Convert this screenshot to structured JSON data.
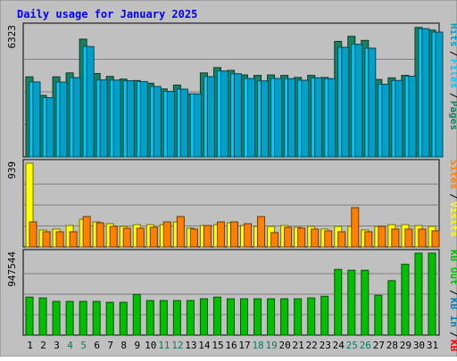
{
  "chart_data": {
    "type": "bar",
    "title": "Daily usage for January 2025",
    "categories": [
      "1",
      "2",
      "3",
      "4",
      "5",
      "6",
      "7",
      "8",
      "9",
      "10",
      "11",
      "12",
      "13",
      "14",
      "15",
      "16",
      "17",
      "18",
      "19",
      "20",
      "21",
      "22",
      "23",
      "24",
      "25",
      "26",
      "27",
      "28",
      "29",
      "30",
      "31"
    ],
    "weekend_days": [
      "4",
      "5",
      "11",
      "12",
      "18",
      "19",
      "25",
      "26"
    ],
    "panels": [
      {
        "id": "hits-files-pages",
        "ymax_label": "6323",
        "ylim": [
          0,
          6323
        ],
        "legend": [
          "Pages",
          "Files",
          "Hits"
        ],
        "legend_separator": "/",
        "series": [
          {
            "name": "Hits",
            "color": "#1a8060",
            "values": [
              3890,
              2990,
              3890,
              4080,
              5720,
              4050,
              3910,
              3780,
              3710,
              3580,
              3300,
              3490,
              3060,
              4080,
              4340,
              4200,
              3980,
              3960,
              3980,
              3960,
              3860,
              3960,
              3860,
              5610,
              5860,
              5660,
              3760,
              3840,
              3960,
              6290,
              6160
            ]
          },
          {
            "name": "Files",
            "color": "#00c8f8",
            "values": [
              3640,
              2880,
              3630,
              3850,
              5360,
              3740,
              3730,
              3700,
              3660,
              3420,
              3180,
              3290,
              3060,
              3900,
              4170,
              4040,
              3810,
              3690,
              3810,
              3800,
              3720,
              3840,
              3800,
              5320,
              5470,
              5280,
              3530,
              3710,
              3920,
              6230,
              6060
            ]
          },
          {
            "name": "Pages",
            "color": "#00a0c8",
            "values": [
              3640,
              2880,
              3630,
              3850,
              5360,
              3740,
              3730,
              3700,
              3660,
              3420,
              3180,
              3290,
              3060,
              3900,
              4170,
              4040,
              3810,
              3690,
              3810,
              3800,
              3720,
              3840,
              3800,
              5320,
              5470,
              5280,
              3530,
              3710,
              3920,
              6230,
              6060
            ]
          }
        ]
      },
      {
        "id": "visits-sites",
        "ymax_label": "939",
        "ylim": [
          0,
          939
        ],
        "legend": [
          "Visits",
          "Sites"
        ],
        "legend_separator": "/",
        "series": [
          {
            "name": "Visits",
            "color": "#ffff00",
            "values": [
              939,
              190,
              200,
              240,
              310,
              280,
              260,
              230,
              250,
              250,
              250,
              280,
              210,
              240,
              250,
              270,
              240,
              230,
              230,
              240,
              220,
              230,
              200,
              230,
              230,
              190,
              230,
              250,
              250,
              240,
              230
            ]
          },
          {
            "name": "Sites",
            "color": "#ff8000",
            "values": [
              280,
              170,
              170,
              170,
              340,
              270,
              230,
              210,
              210,
              220,
              280,
              340,
              200,
              240,
              280,
              280,
              260,
              340,
              160,
              220,
              210,
              200,
              180,
              170,
              440,
              170,
              230,
              200,
              200,
              200,
              180
            ]
          }
        ]
      },
      {
        "id": "kbytes",
        "ymax_label": "947544",
        "ylim": [
          0,
          947544
        ],
        "legend": [
          "KB F",
          "KB In",
          "KB Out"
        ],
        "legend_separator": "/",
        "series": [
          {
            "name": "KB F",
            "color": "#ff0000",
            "values": [
              0,
              0,
              0,
              0,
              0,
              0,
              0,
              0,
              0,
              0,
              0,
              0,
              0,
              0,
              0,
              0,
              0,
              0,
              0,
              0,
              0,
              0,
              0,
              0,
              0,
              0,
              0,
              0,
              0,
              0,
              0
            ]
          },
          {
            "name": "KB In",
            "color": "#0080c0",
            "values": [
              0,
              0,
              0,
              0,
              0,
              0,
              0,
              0,
              0,
              0,
              0,
              0,
              0,
              0,
              0,
              0,
              0,
              0,
              0,
              0,
              0,
              0,
              0,
              0,
              0,
              0,
              0,
              0,
              0,
              0,
              0
            ]
          },
          {
            "name": "KB Out",
            "color": "#00c000",
            "values": [
              440000,
              430000,
              390000,
              390000,
              390000,
              390000,
              380000,
              380000,
              470000,
              400000,
              400000,
              400000,
              400000,
              420000,
              440000,
              420000,
              420000,
              420000,
              420000,
              420000,
              420000,
              430000,
              450000,
              760000,
              750000,
              750000,
              460000,
              630000,
              820000,
              947544,
              947544
            ]
          }
        ]
      }
    ],
    "colors": {
      "background": "#c0c0c0",
      "plot_background": "#c0c0c0",
      "title": "#0000ff",
      "gridline": "#808080",
      "weekday_label": "#000000",
      "weekend_label": "#00805c"
    }
  }
}
